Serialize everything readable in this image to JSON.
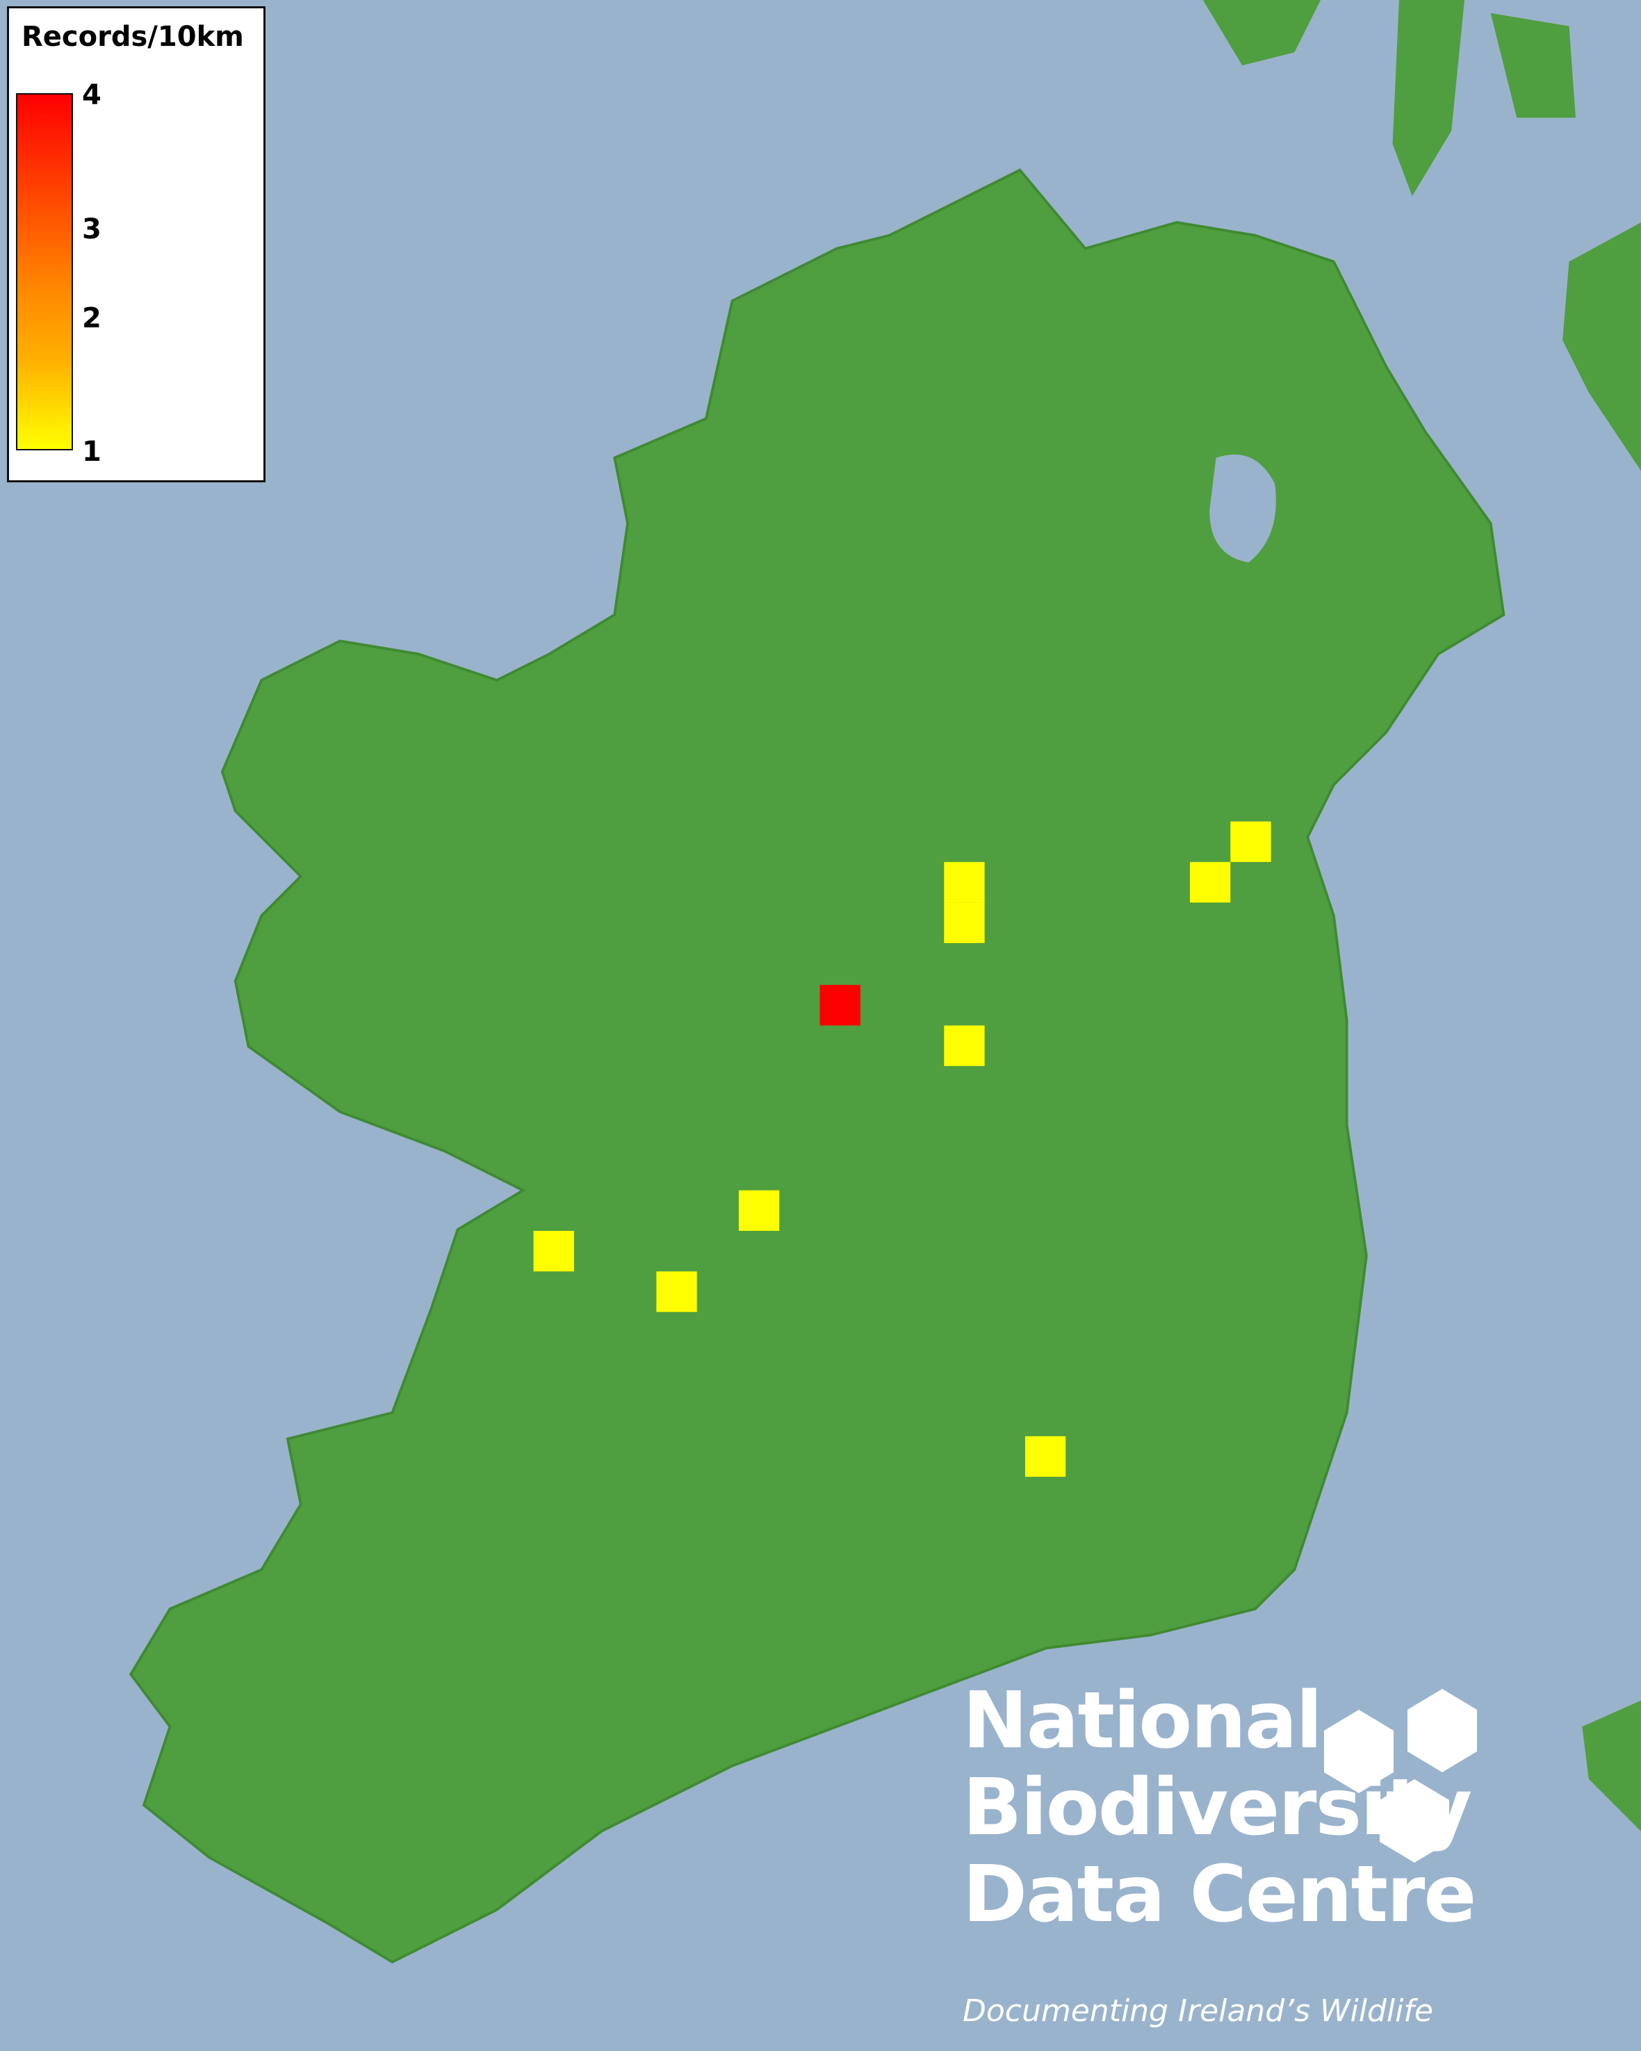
{
  "legend": {
    "title": "Records/10km",
    "labels": [
      "4",
      "3",
      "2",
      "1"
    ],
    "min_value": 1,
    "max_value": 4,
    "color_min": "#ffff00",
    "color_max": "#ff0000"
  },
  "map": {
    "sea_color": "#9ab3cc",
    "land_color": "#4f9e3f",
    "records": [
      {
        "value": 1
      },
      {
        "value": 1
      },
      {
        "value": 1
      },
      {
        "value": 1
      },
      {
        "value": 4
      },
      {
        "value": 1
      },
      {
        "value": 1
      },
      {
        "value": 1
      },
      {
        "value": 1
      },
      {
        "value": 1
      }
    ]
  },
  "logo": {
    "line1": "National",
    "line2": "Biodiversity",
    "line3": "Data Centre",
    "tagline": "Documenting Ireland’s Wildlife"
  }
}
